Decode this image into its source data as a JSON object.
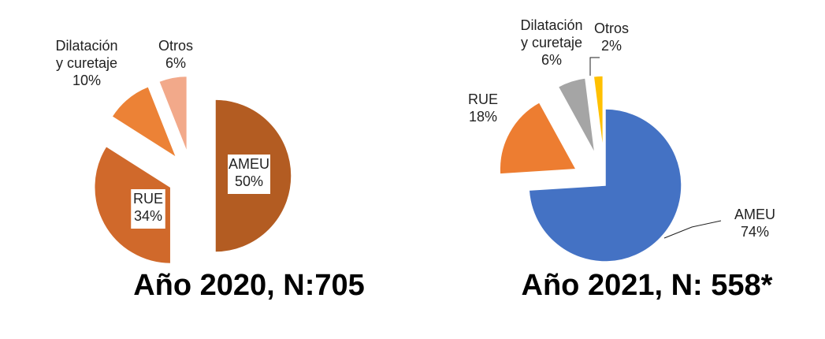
{
  "chart_data": [
    {
      "type": "pie",
      "title": "Año 2020, N:705",
      "slices": [
        {
          "label": [
            "AMEU"
          ],
          "value": 50,
          "value_label": "50%",
          "color": "#b35c22"
        },
        {
          "label": [
            "RUE"
          ],
          "value": 34,
          "value_label": "34%",
          "color": "#d0692b"
        },
        {
          "label": [
            "Dilatación",
            "y curetaje"
          ],
          "value": 10,
          "value_label": "10%",
          "color": "#ec8236"
        },
        {
          "label": [
            "Otros"
          ],
          "value": 6,
          "value_label": "6%",
          "color": "#f2a98a"
        }
      ]
    },
    {
      "type": "pie",
      "title": "Año 2021, N: 558*",
      "slices": [
        {
          "label": [
            "AMEU"
          ],
          "value": 74,
          "value_label": "74%",
          "color": "#4472c4"
        },
        {
          "label": [
            "RUE"
          ],
          "value": 18,
          "value_label": "18%",
          "color": "#ed7d31"
        },
        {
          "label": [
            "Dilatación",
            "y curetaje"
          ],
          "value": 6,
          "value_label": "6%",
          "color": "#a5a5a5"
        },
        {
          "label": [
            "Otros"
          ],
          "value": 2,
          "value_label": "2%",
          "color": "#ffc000"
        }
      ]
    }
  ]
}
